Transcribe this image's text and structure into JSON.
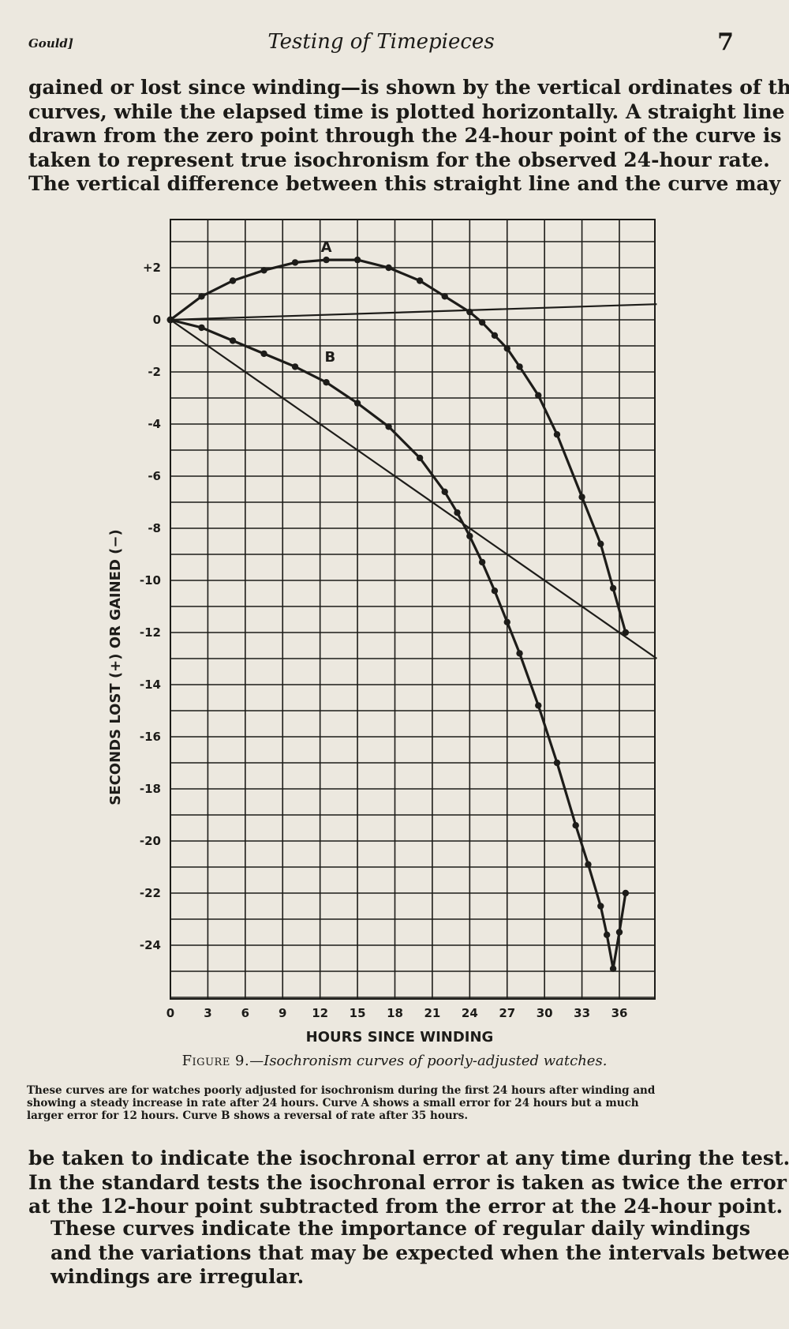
{
  "header": {
    "author": "Gould]",
    "title": "Testing of Timepieces",
    "page_number": "7"
  },
  "paragraph_top": [
    "gained or lost since winding—is shown by the vertical ordinates of the",
    "curves, while the elapsed time is plotted horizontally.  A straight line",
    "drawn from the zero point through the 24-hour point of the curve is",
    "taken to represent true isochronism for the observed 24-hour rate.",
    "The vertical difference between this straight line and the curve may"
  ],
  "figure": {
    "label": "Figure 9.",
    "caption": "Isochronism curves of poorly-adjusted watches.",
    "note": [
      "These curves are for watches poorly adjusted for isochronism during the first 24 hours after winding and",
      "showing a steady increase in rate after 24 hours.  Curve A shows a small error for 24 hours but a much",
      "larger error for 12 hours.  Curve B shows a reversal of rate after 35 hours."
    ]
  },
  "chart_data": {
    "type": "line",
    "xlabel": "HOURS SINCE WINDING",
    "ylabel": "SECONDS LOST (+) OR GAINED (−)",
    "xlim": [
      0,
      38
    ],
    "ylim": [
      -26,
      3
    ],
    "x_ticks": [
      0,
      3,
      6,
      9,
      12,
      15,
      18,
      21,
      24,
      27,
      30,
      33,
      36
    ],
    "x_tick_labels": [
      "0",
      "3",
      "6",
      "9",
      "12",
      "15",
      "18",
      "21",
      "24",
      "27",
      "30",
      "33",
      "36"
    ],
    "y_ticks": [
      2,
      0,
      -2,
      -4,
      -6,
      -8,
      -10,
      -12,
      -14,
      -16,
      -18,
      -20,
      -22,
      -24
    ],
    "y_tick_labels": [
      "+2",
      "0",
      "-2",
      "-4",
      "-6",
      "-8",
      "-10",
      "-12",
      "-14",
      "-16",
      "-18",
      "-20",
      "-22",
      "-24"
    ],
    "grid": true,
    "series": [
      {
        "name": "A",
        "x": [
          0,
          2.5,
          5,
          7.5,
          10,
          12.5,
          15,
          17.5,
          20,
          22,
          24,
          25,
          26,
          27,
          28,
          29.5,
          31,
          33,
          34.5,
          35.5,
          36.5
        ],
        "y": [
          0,
          0.9,
          1.5,
          1.9,
          2.2,
          2.3,
          2.3,
          2.0,
          1.5,
          0.9,
          0.3,
          -0.1,
          -0.6,
          -1.1,
          -1.8,
          -2.9,
          -4.4,
          -6.8,
          -8.6,
          -10.3,
          -12.0
        ],
        "label_at": [
          12.5,
          2.6
        ]
      },
      {
        "name": "B",
        "x": [
          0,
          2.5,
          5,
          7.5,
          10,
          12.5,
          15,
          17.5,
          20,
          22,
          23,
          24,
          25,
          26,
          27,
          28,
          29.5,
          31,
          32.5,
          33.5,
          34.5,
          35,
          35.5,
          36,
          36.5
        ],
        "y": [
          0,
          -0.3,
          -0.8,
          -1.3,
          -1.8,
          -2.4,
          -3.2,
          -4.1,
          -5.3,
          -6.6,
          -7.4,
          -8.3,
          -9.3,
          -10.4,
          -11.6,
          -12.8,
          -14.8,
          -17.0,
          -19.4,
          -20.9,
          -22.5,
          -23.6,
          -24.9,
          -23.5,
          -22.0
        ],
        "label_at": [
          12.8,
          -1.6
        ]
      },
      {
        "name": "",
        "kind": "reference",
        "x": [
          0,
          39
        ],
        "y": [
          0,
          0.6
        ]
      },
      {
        "name": "",
        "kind": "reference",
        "x": [
          0,
          39
        ],
        "y": [
          0,
          -13
        ]
      }
    ]
  },
  "paragraph_bottom": [
    "be taken to indicate the isochronal error at any time during the test.",
    "In the standard tests the isochronal error is taken as twice the error",
    "at the 12-hour point subtracted from the error at the 24-hour point."
  ],
  "paragraph_final": [
    "These curves indicate the importance of regular daily windings",
    "and the variations that may be expected when the intervals between",
    "windings are irregular."
  ]
}
